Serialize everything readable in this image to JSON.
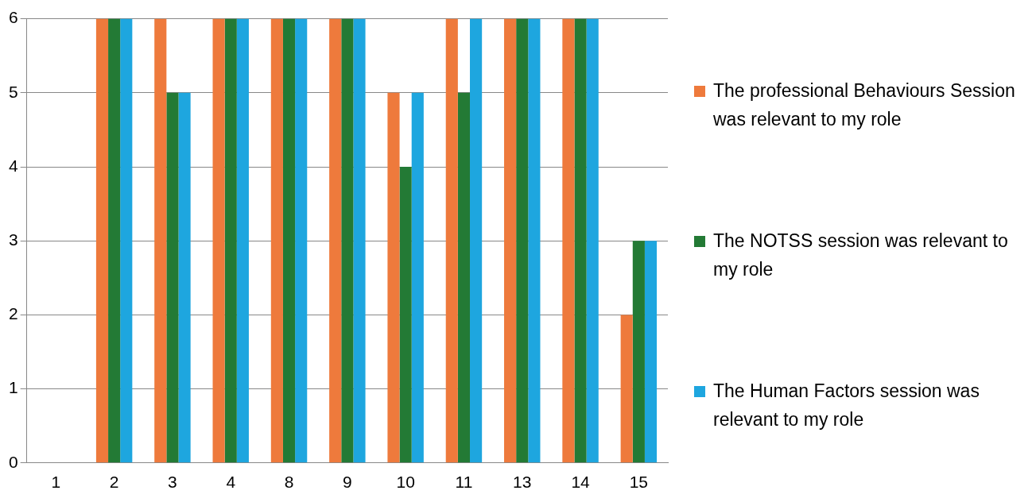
{
  "chart_data": {
    "type": "bar",
    "categories": [
      "1",
      "2",
      "3",
      "4",
      "8",
      "9",
      "10",
      "11",
      "13",
      "14",
      "15"
    ],
    "series": [
      {
        "name": "The professional Behaviours Session was relevant to my role",
        "color": "#ee7a3c",
        "values": [
          0,
          6,
          6,
          6,
          6,
          6,
          5,
          6,
          6,
          6,
          2
        ]
      },
      {
        "name": "The NOTSS session was relevant to my role",
        "color": "#237a35",
        "values": [
          0,
          6,
          5,
          6,
          6,
          6,
          4,
          5,
          6,
          6,
          3
        ]
      },
      {
        "name": "The Human Factors session was relevant to my role",
        "color": "#1ea6df",
        "values": [
          0,
          6,
          5,
          6,
          6,
          6,
          5,
          6,
          6,
          6,
          3
        ]
      }
    ],
    "ylim": [
      0,
      6
    ],
    "yticks": [
      0,
      1,
      2,
      3,
      4,
      5,
      6
    ],
    "grid": "y",
    "legend": "right"
  }
}
